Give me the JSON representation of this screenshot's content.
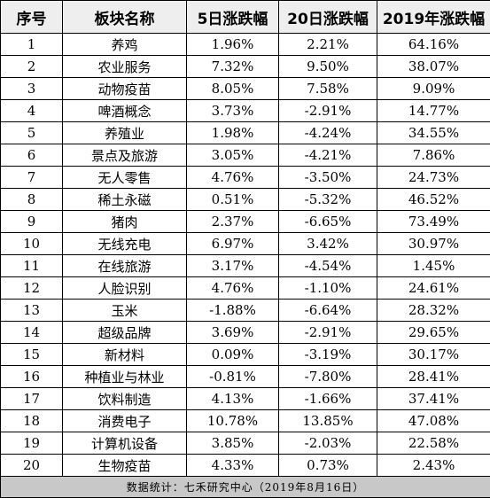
{
  "table": {
    "headers": {
      "index": "序号",
      "name": "板块名称",
      "chg_5d": "5日涨跌幅",
      "chg_20d": "20日涨跌幅",
      "chg_2019": "2019年涨跌幅"
    },
    "rows": [
      {
        "index": "1",
        "name": "养鸡",
        "chg_5d": "1.96%",
        "chg_20d": "2.21%",
        "chg_2019": "64.16%"
      },
      {
        "index": "2",
        "name": "农业服务",
        "chg_5d": "7.32%",
        "chg_20d": "9.50%",
        "chg_2019": "38.07%"
      },
      {
        "index": "3",
        "name": "动物疫苗",
        "chg_5d": "8.05%",
        "chg_20d": "7.58%",
        "chg_2019": "9.09%"
      },
      {
        "index": "4",
        "name": "啤酒概念",
        "chg_5d": "3.73%",
        "chg_20d": "-2.91%",
        "chg_2019": "14.77%"
      },
      {
        "index": "5",
        "name": "养殖业",
        "chg_5d": "1.98%",
        "chg_20d": "-4.24%",
        "chg_2019": "34.55%"
      },
      {
        "index": "6",
        "name": "景点及旅游",
        "chg_5d": "3.05%",
        "chg_20d": "-4.21%",
        "chg_2019": "7.86%"
      },
      {
        "index": "7",
        "name": "无人零售",
        "chg_5d": "4.76%",
        "chg_20d": "-3.50%",
        "chg_2019": "24.73%"
      },
      {
        "index": "8",
        "name": "稀土永磁",
        "chg_5d": "0.51%",
        "chg_20d": "-5.32%",
        "chg_2019": "46.52%"
      },
      {
        "index": "9",
        "name": "猪肉",
        "chg_5d": "2.37%",
        "chg_20d": "-6.65%",
        "chg_2019": "73.49%"
      },
      {
        "index": "10",
        "name": "无线充电",
        "chg_5d": "6.97%",
        "chg_20d": "3.42%",
        "chg_2019": "30.97%"
      },
      {
        "index": "11",
        "name": "在线旅游",
        "chg_5d": "3.17%",
        "chg_20d": "-4.54%",
        "chg_2019": "1.45%"
      },
      {
        "index": "12",
        "name": "人脸识别",
        "chg_5d": "4.76%",
        "chg_20d": "-1.10%",
        "chg_2019": "24.61%"
      },
      {
        "index": "13",
        "name": "玉米",
        "chg_5d": "-1.88%",
        "chg_20d": "-6.64%",
        "chg_2019": "28.32%"
      },
      {
        "index": "14",
        "name": "超级品牌",
        "chg_5d": "3.69%",
        "chg_20d": "-2.91%",
        "chg_2019": "29.65%"
      },
      {
        "index": "15",
        "name": "新材料",
        "chg_5d": "0.09%",
        "chg_20d": "-3.19%",
        "chg_2019": "30.17%"
      },
      {
        "index": "16",
        "name": "种植业与林业",
        "chg_5d": "-0.81%",
        "chg_20d": "-7.80%",
        "chg_2019": "28.41%"
      },
      {
        "index": "17",
        "name": "饮料制造",
        "chg_5d": "4.13%",
        "chg_20d": "-1.66%",
        "chg_2019": "37.41%"
      },
      {
        "index": "18",
        "name": "消费电子",
        "chg_5d": "10.78%",
        "chg_20d": "13.85%",
        "chg_2019": "47.08%"
      },
      {
        "index": "19",
        "name": "计算机设备",
        "chg_5d": "3.85%",
        "chg_20d": "-2.03%",
        "chg_2019": "22.58%"
      },
      {
        "index": "20",
        "name": "生物疫苗",
        "chg_5d": "4.33%",
        "chg_20d": "0.73%",
        "chg_2019": "2.43%"
      }
    ],
    "footer": "数据统计：七禾研究中心（2019年8月16日）"
  },
  "colors": {
    "header_bg": "#eeeeee",
    "footer_bg": "#c8c8c8",
    "border": "#000000",
    "text": "#000000"
  }
}
